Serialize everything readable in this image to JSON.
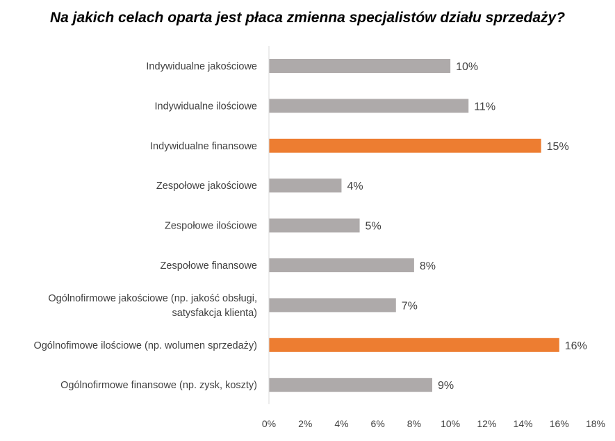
{
  "chart_data": {
    "type": "bar",
    "orientation": "horizontal",
    "title": "Na jakich celach oparta jest płaca zmienna specjalistów działu sprzedaży?",
    "categories": [
      [
        "Indywidualne jakościowe"
      ],
      [
        "Indywidualne ilościowe"
      ],
      [
        "Indywidualne finansowe"
      ],
      [
        "Zespołowe jakościowe"
      ],
      [
        "Zespołowe ilościowe"
      ],
      [
        "Zespołowe finansowe"
      ],
      [
        "Ogólnofirmowe jakościowe (np. jakość obsługi,",
        "satysfakcja klienta)"
      ],
      [
        "Ogólnofimowe ilościowe (np. wolumen sprzedaży)"
      ],
      [
        "Ogólnofirmowe finansowe (np. zysk, koszty)"
      ]
    ],
    "values": [
      10,
      11,
      15,
      4,
      5,
      8,
      7,
      16,
      9
    ],
    "data_labels": [
      "10%",
      "11%",
      "15%",
      "4%",
      "5%",
      "8%",
      "7%",
      "16%",
      "9%"
    ],
    "highlight": [
      false,
      false,
      true,
      false,
      false,
      false,
      false,
      true,
      false
    ],
    "xlim": [
      0,
      18
    ],
    "xticks": [
      0,
      2,
      4,
      6,
      8,
      10,
      12,
      14,
      16,
      18
    ],
    "xtick_labels": [
      "0%",
      "2%",
      "4%",
      "6%",
      "8%",
      "10%",
      "12%",
      "14%",
      "16%",
      "18%"
    ],
    "xlabel": "",
    "ylabel": "",
    "grid": false,
    "colors": {
      "default": "#aeaaaa",
      "highlight": "#ed7d31",
      "axis": "#d9d9d9",
      "text": "#404040"
    }
  }
}
